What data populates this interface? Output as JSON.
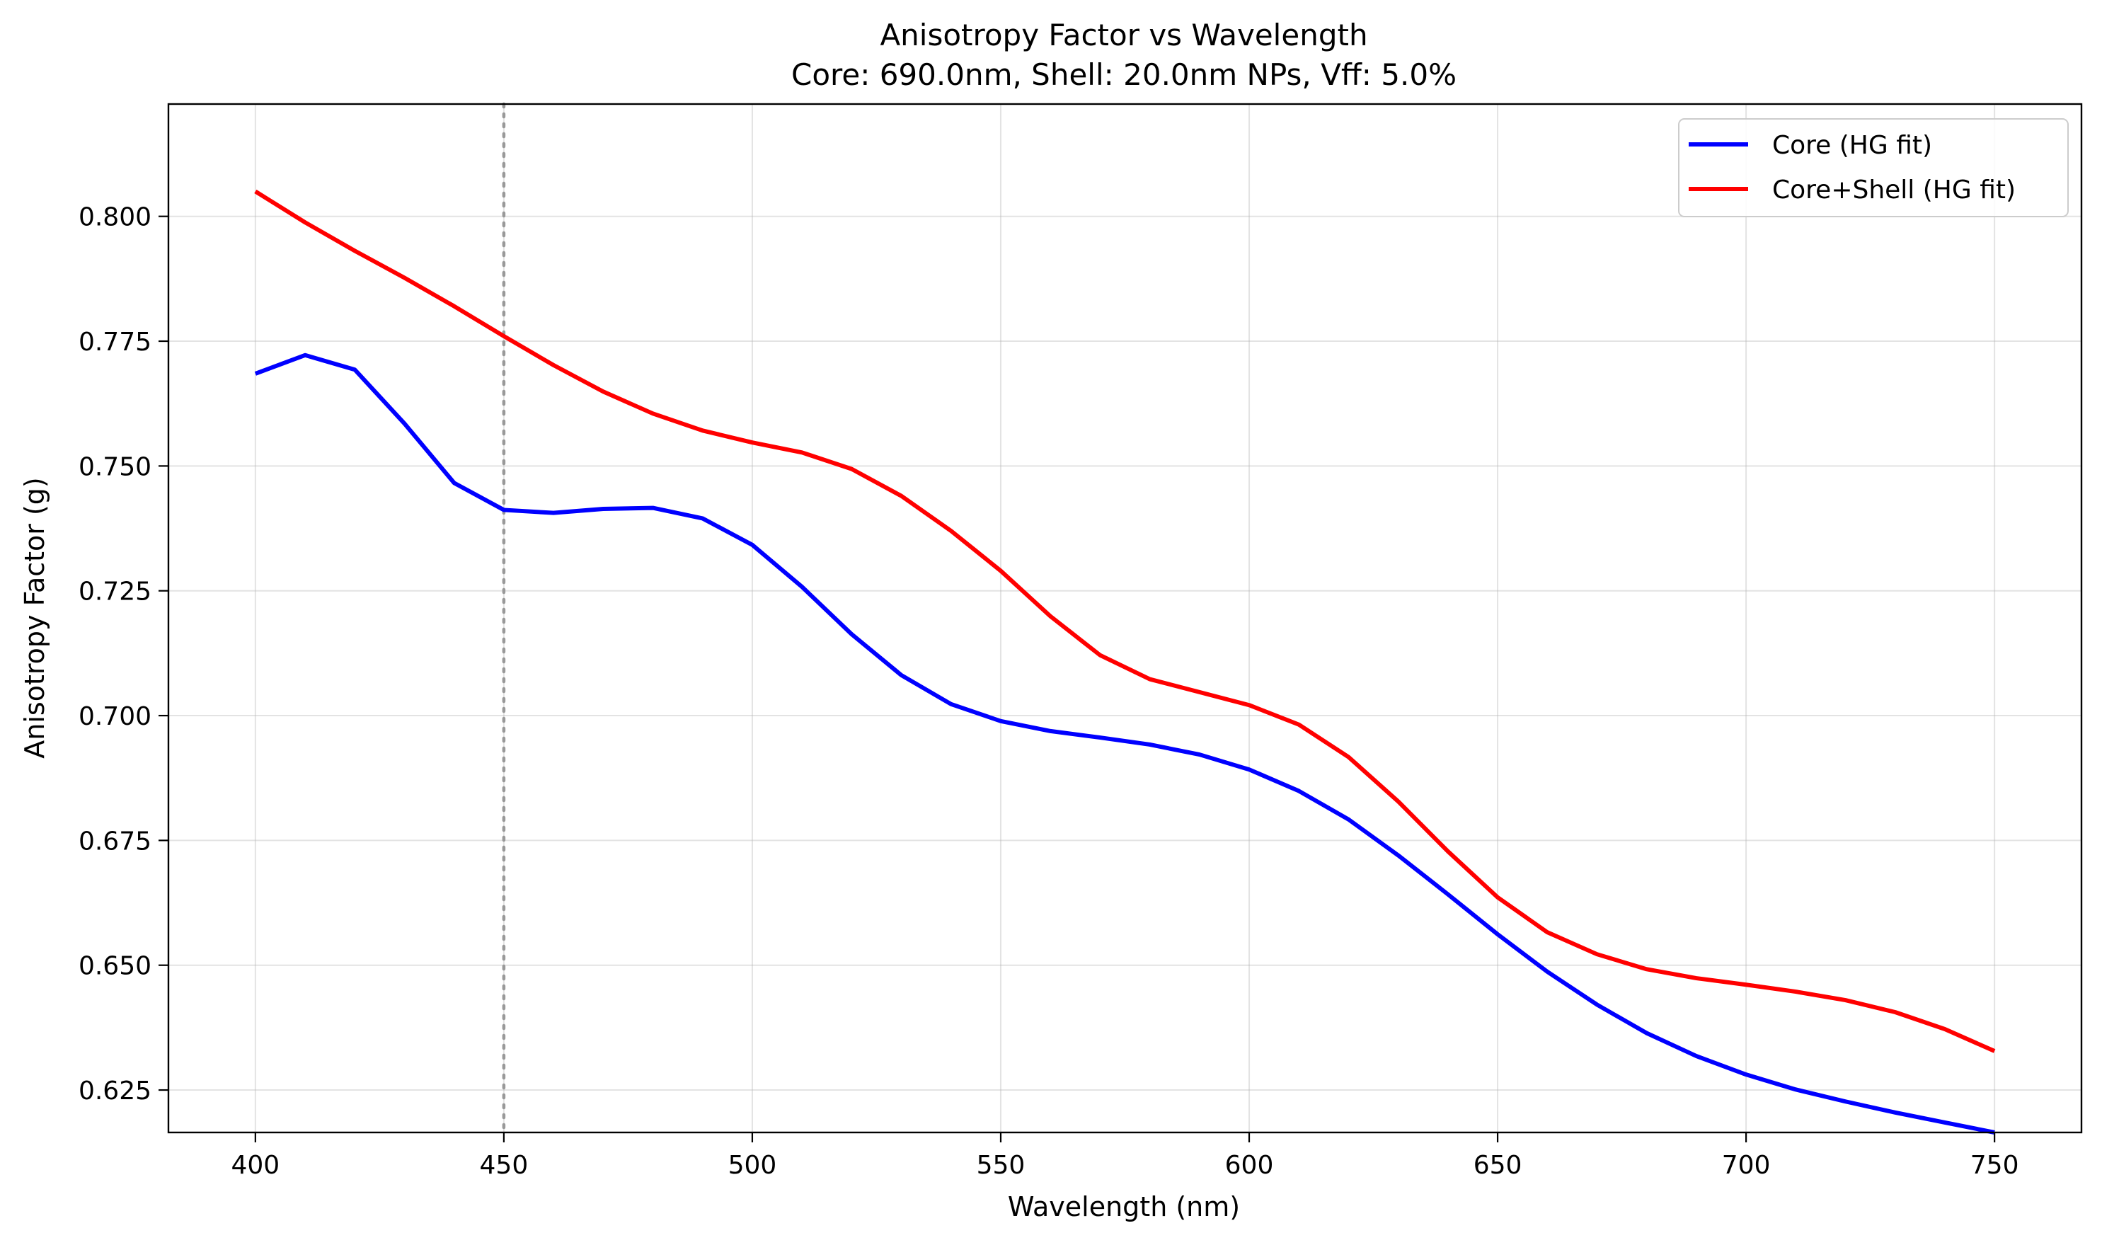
{
  "chart_data": {
    "type": "line",
    "title": "Anisotropy Factor vs Wavelength",
    "subtitle": "Core: 690.0nm, Shell: 20.0nm NPs, Vff: 5.0%",
    "xlabel": "Wavelength (nm)",
    "ylabel": "Anisotropy Factor (g)",
    "xlim": [
      382.5,
      767.5
    ],
    "ylim": [
      0.6165,
      0.8225
    ],
    "x_ticks": [
      400,
      450,
      500,
      550,
      600,
      650,
      700,
      750
    ],
    "x_tick_labels": [
      "400",
      "450",
      "500",
      "550",
      "600",
      "650",
      "700",
      "750"
    ],
    "y_ticks": [
      0.625,
      0.65,
      0.675,
      0.7,
      0.725,
      0.75,
      0.775,
      0.8
    ],
    "y_tick_labels": [
      "0.625",
      "0.650",
      "0.675",
      "0.700",
      "0.725",
      "0.750",
      "0.775",
      "0.800"
    ],
    "grid": true,
    "legend_position": "top-right",
    "reference_line": {
      "orientation": "vertical",
      "x": 450,
      "style": "dotted",
      "color": "#999999"
    },
    "x": [
      400,
      410,
      420,
      430,
      440,
      450,
      460,
      470,
      480,
      490,
      500,
      510,
      520,
      530,
      540,
      550,
      560,
      570,
      580,
      590,
      600,
      610,
      620,
      630,
      640,
      650,
      660,
      670,
      680,
      690,
      700,
      710,
      720,
      730,
      740,
      750
    ],
    "series": [
      {
        "name": "Core (HG fit)",
        "color": "#0000ff",
        "values": [
          0.7685,
          0.7722,
          0.7693,
          0.7585,
          0.7466,
          0.7412,
          0.7406,
          0.7414,
          0.7416,
          0.7395,
          0.7342,
          0.7258,
          0.7163,
          0.7081,
          0.7023,
          0.6989,
          0.6969,
          0.6956,
          0.6942,
          0.6922,
          0.6892,
          0.6849,
          0.6792,
          0.672,
          0.6642,
          0.6562,
          0.6487,
          0.6421,
          0.6364,
          0.6318,
          0.6281,
          0.6251,
          0.6227,
          0.6205,
          0.6185,
          0.6165
        ]
      },
      {
        "name": "Core+Shell (HG fit)",
        "color": "#ff0000",
        "values": [
          0.805,
          0.7988,
          0.7931,
          0.7877,
          0.782,
          0.776,
          0.7702,
          0.7649,
          0.7605,
          0.7571,
          0.7547,
          0.7527,
          0.7494,
          0.744,
          0.737,
          0.729,
          0.7199,
          0.7121,
          0.7073,
          0.7047,
          0.7021,
          0.6982,
          0.6917,
          0.6828,
          0.6728,
          0.6636,
          0.6566,
          0.6522,
          0.6492,
          0.6474,
          0.6461,
          0.6447,
          0.643,
          0.6406,
          0.6372,
          0.6328
        ]
      }
    ]
  }
}
